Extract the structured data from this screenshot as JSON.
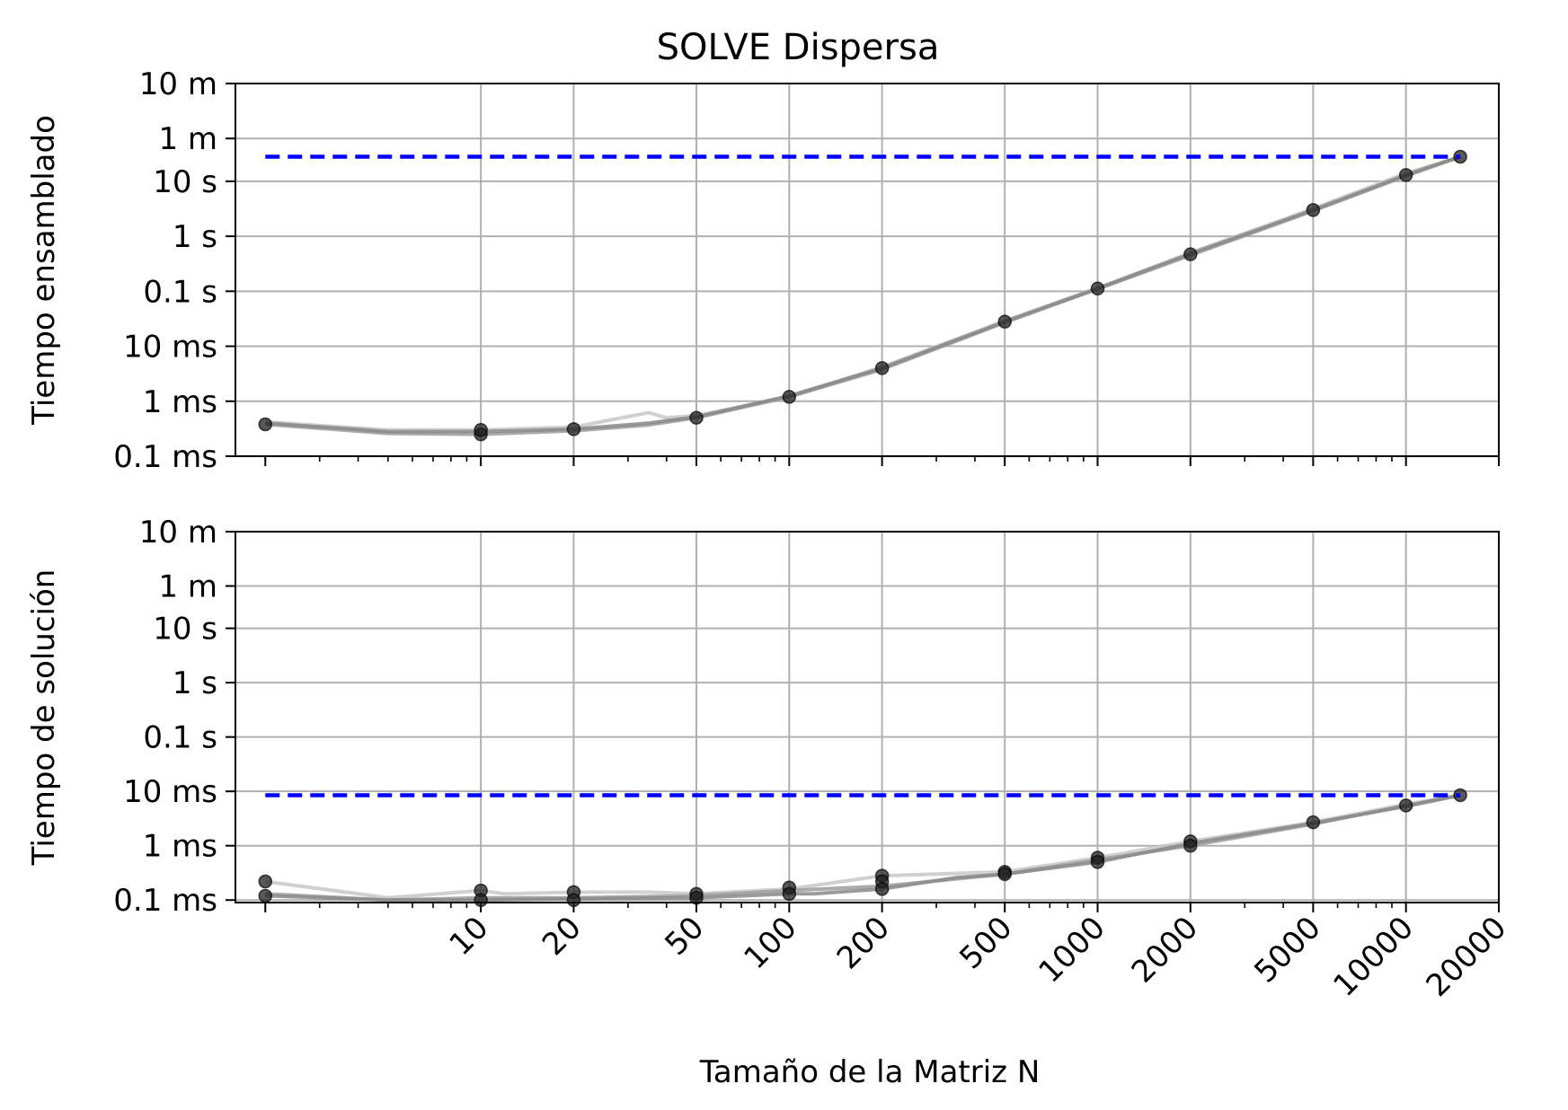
{
  "chart_data": {
    "type": "line",
    "title": "SOLVE Dispersa",
    "xlabel": "Tamaño de la Matriz N",
    "xscale": "log",
    "xlim": [
      1.6,
      20000
    ],
    "x_ticks": [
      10,
      20,
      50,
      100,
      200,
      500,
      1000,
      2000,
      5000,
      10000,
      20000
    ],
    "x_tick_labels": [
      "10",
      "20",
      "50",
      "100",
      "200",
      "500",
      "1000",
      "2000",
      "5000",
      "10000",
      "20000"
    ],
    "yscale": "log",
    "y_unit": "s",
    "y_ticks": [
      0.0001,
      0.001,
      0.01,
      0.1,
      1,
      10,
      60,
      600
    ],
    "y_tick_labels": [
      "0.1 ms",
      "1 ms",
      "10 ms",
      "0.1 s",
      "1 s",
      "10 s",
      "1 m",
      "10 m"
    ],
    "grid": true,
    "panels": [
      {
        "ylabel": "Tiempo ensamblado",
        "ylim": [
          0.0001,
          600
        ],
        "limit_line": {
          "y": 28,
          "x_range": [
            2,
            15000
          ],
          "style": "dashed",
          "color": "#0000ff"
        },
        "series": [
          {
            "x": [
              2,
              5,
              10,
              20,
              35,
              40,
              50,
              100,
              200,
              500,
              1000,
              2000,
              5000,
              10000,
              15000
            ],
            "y": [
              0.00042,
              0.0003,
              0.0003,
              0.00034,
              0.00062,
              0.0005,
              0.00055,
              0.0012,
              0.0042,
              0.029,
              0.115,
              0.5,
              3.2,
              14,
              28
            ]
          },
          {
            "x": [
              2,
              5,
              10,
              20,
              35,
              50,
              100,
              200,
              500,
              1000,
              2000,
              5000,
              10000,
              15000
            ],
            "y": [
              0.00038,
              0.00026,
              0.00025,
              0.00029,
              0.00037,
              0.0005,
              0.0012,
              0.0038,
              0.027,
              0.11,
              0.45,
              2.9,
              12.5,
              28
            ]
          },
          {
            "x": [
              2,
              5,
              10,
              20,
              35,
              50,
              100,
              200,
              500,
              1000,
              2000,
              5000,
              10000,
              15000
            ],
            "y": [
              0.0004,
              0.00028,
              0.00028,
              0.00031,
              0.0004,
              0.00052,
              0.00125,
              0.004,
              0.028,
              0.112,
              0.48,
              3.0,
              13,
              28
            ]
          }
        ],
        "markers": {
          "x": [
            2,
            10,
            10,
            20,
            50,
            100,
            200,
            500,
            1000,
            2000,
            5000,
            10000,
            15000
          ],
          "y": [
            0.00038,
            0.00025,
            0.0003,
            0.00031,
            0.0005,
            0.0012,
            0.004,
            0.028,
            0.112,
            0.47,
            3.0,
            13,
            28
          ]
        }
      },
      {
        "ylabel": "Tiempo de solución",
        "ylim": [
          9e-05,
          600
        ],
        "limit_line": {
          "y": 0.0085,
          "x_range": [
            2,
            15000
          ],
          "style": "dashed",
          "color": "#0000ff"
        },
        "series": [
          {
            "x": [
              2,
              5,
              10,
              12,
              20,
              35,
              50,
              100,
              200,
              500,
              1000,
              2000,
              5000,
              10000,
              15000
            ],
            "y": [
              0.00022,
              0.00011,
              0.00015,
              0.00013,
              0.00014,
              0.00014,
              0.00013,
              0.00016,
              0.00028,
              0.00033,
              0.0006,
              0.0012,
              0.0027,
              0.0058,
              0.0085
            ]
          },
          {
            "x": [
              2,
              5,
              10,
              20,
              50,
              100,
              200,
              500,
              1000,
              2000,
              5000,
              10000,
              15000
            ],
            "y": [
              0.00013,
              0.0001,
              0.00011,
              0.00011,
              0.00012,
              0.00015,
              0.00018,
              0.0003,
              0.00055,
              0.001,
              0.0025,
              0.0055,
              0.0085
            ]
          },
          {
            "x": [
              2,
              5,
              10,
              20,
              50,
              100,
              120,
              200,
              350,
              500,
              1000,
              2000,
              5000,
              10000,
              15000
            ],
            "y": [
              0.00012,
              0.0001,
              0.0001,
              0.000105,
              0.00011,
              0.00013,
              0.00013,
              0.00016,
              0.00026,
              0.0003,
              0.0005,
              0.0011,
              0.0026,
              0.0053,
              0.0085
            ]
          }
        ],
        "markers": {
          "x": [
            2,
            2,
            10,
            10,
            20,
            20,
            50,
            50,
            100,
            100,
            200,
            200,
            200,
            500,
            500,
            1000,
            1000,
            2000,
            2000,
            5000,
            10000,
            15000
          ],
          "y": [
            0.00022,
            0.00012,
            0.00015,
            0.0001,
            0.00014,
            0.0001,
            0.00013,
            0.00011,
            0.00017,
            0.00013,
            0.00028,
            0.00022,
            0.00016,
            0.00033,
            0.0003,
            0.0006,
            0.0005,
            0.0012,
            0.001,
            0.0027,
            0.0055,
            0.0085
          ]
        }
      }
    ]
  }
}
